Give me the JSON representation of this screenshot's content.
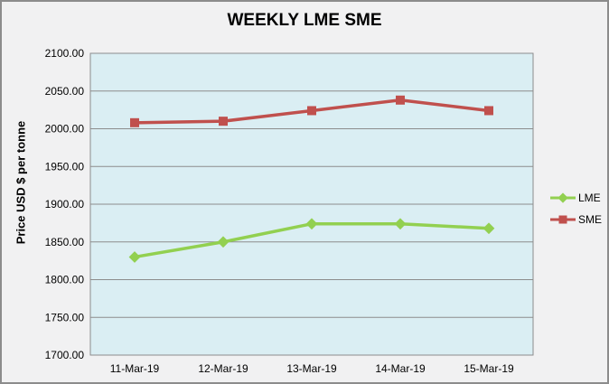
{
  "title": "WEEKLY LME SME",
  "chart_data": {
    "type": "line",
    "title": "WEEKLY LME SME",
    "categories": [
      "11-Mar-19",
      "12-Mar-19",
      "13-Mar-19",
      "14-Mar-19",
      "15-Mar-19"
    ],
    "series": [
      {
        "name": "LME",
        "color": "#92d050",
        "marker": "diamond",
        "values": [
          1830,
          1850,
          1874,
          1874,
          1868
        ]
      },
      {
        "name": "SME",
        "color": "#c0504d",
        "marker": "square",
        "values": [
          2008,
          2010,
          2024,
          2038,
          2024
        ]
      }
    ],
    "xlabel": "",
    "ylabel": "Price USD $ per tonne",
    "ylim": [
      1700,
      2100
    ],
    "ytick_step": 50,
    "ytick_decimals": 2,
    "grid": "horizontal-only",
    "legend_position": "right",
    "colors": {
      "plot_bg": "#daeef3",
      "grid": "#8c8c8c",
      "plot_border": "#8c8c8c",
      "window_bg": "#f1f1f2",
      "window_border": "#8c8c8c",
      "text": "#000000"
    }
  }
}
